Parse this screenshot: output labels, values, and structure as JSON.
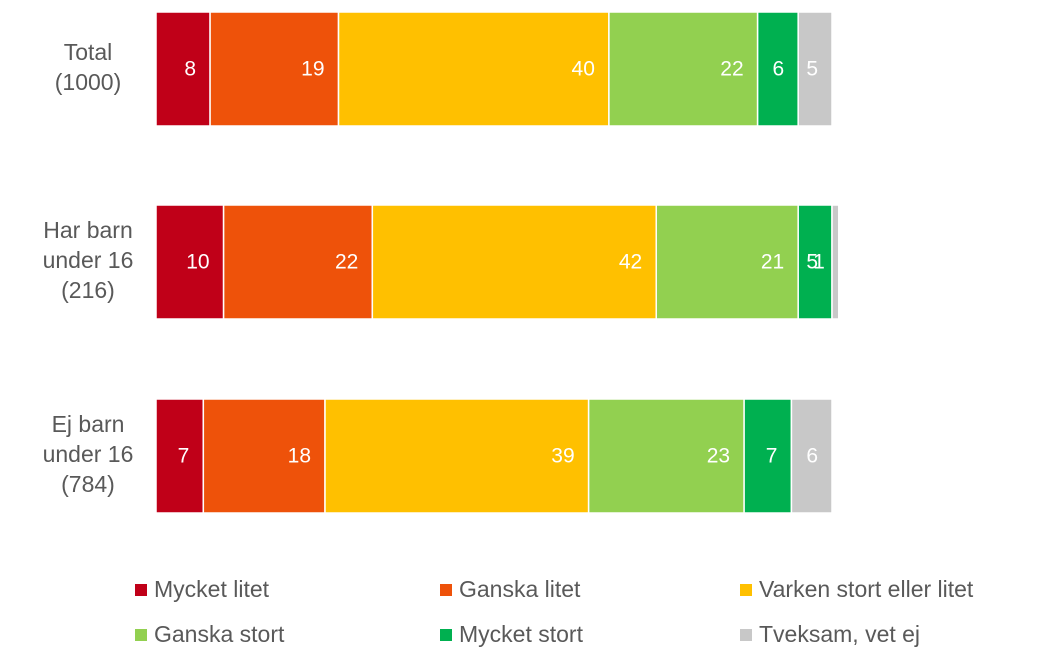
{
  "chart_data": {
    "type": "stacked_barh",
    "categories": [
      "Total\n(1000)",
      "Har barn\nunder 16\n(216)",
      "Ej barn\nunder 16\n(784)"
    ],
    "series": [
      {
        "name": "Mycket litet",
        "color": "#c00018",
        "values": [
          8,
          10,
          7
        ]
      },
      {
        "name": "Ganska litet",
        "color": "#ee520a",
        "values": [
          19,
          22,
          18
        ]
      },
      {
        "name": "Varken stort eller litet",
        "color": "#ffc000",
        "values": [
          40,
          42,
          39
        ]
      },
      {
        "name": "Ganska stort",
        "color": "#92d050",
        "values": [
          22,
          21,
          23
        ]
      },
      {
        "name": "Mycket stort",
        "color": "#00b050",
        "values": [
          6,
          5,
          7
        ]
      },
      {
        "name": "Tveksam, vet ej",
        "color": "#c8c8c8",
        "values": [
          5,
          1,
          6
        ]
      }
    ],
    "xlim": [
      0,
      100
    ],
    "legend": "bottom"
  }
}
